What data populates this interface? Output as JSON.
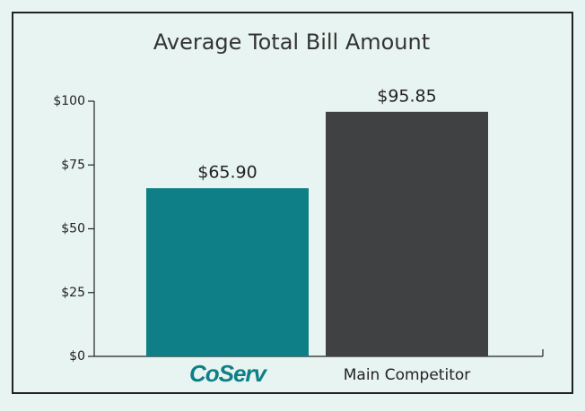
{
  "chart_data": {
    "type": "bar",
    "title": "Average Total Bill Amount",
    "categories": [
      "CoServ",
      "Main Competitor"
    ],
    "values": [
      65.9,
      95.85
    ],
    "value_labels": [
      "$65.90",
      "$95.85"
    ],
    "colors": [
      "#0e7f86",
      "#404143"
    ],
    "ylim": [
      0,
      100
    ],
    "yticks": [
      {
        "value": 0,
        "label": "$0"
      },
      {
        "value": 25,
        "label": "$25"
      },
      {
        "value": 50,
        "label": "$50"
      },
      {
        "value": 75,
        "label": "$75"
      },
      {
        "value": 100,
        "label": "$100"
      }
    ]
  }
}
